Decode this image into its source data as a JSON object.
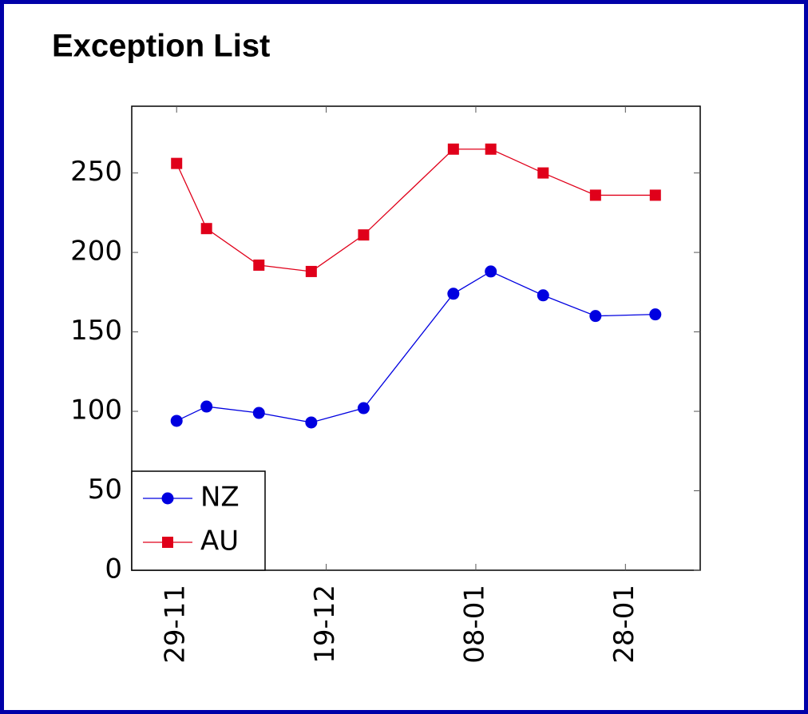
{
  "chart_data": {
    "type": "line",
    "title": "Exception List",
    "x": [
      "29-11",
      "03-12",
      "10-12",
      "17-12",
      "24-12",
      "05-01",
      "10-01",
      "17-01",
      "24-01",
      "01-02"
    ],
    "series": [
      {
        "name": "NZ",
        "color": "#0000e0",
        "marker": "circle",
        "values": [
          94,
          103,
          99,
          93,
          102,
          174,
          188,
          173,
          160,
          161
        ]
      },
      {
        "name": "AU",
        "color": "#e0001a",
        "marker": "square",
        "values": [
          256,
          215,
          192,
          188,
          211,
          265,
          265,
          250,
          236,
          236
        ]
      }
    ],
    "xlim": [
      "23-11",
      "07-02"
    ],
    "xticks": [
      "29-11",
      "19-12",
      "08-01",
      "28-01"
    ],
    "ylim": [
      0,
      292
    ],
    "yticks": [
      0,
      50,
      100,
      150,
      200,
      250
    ],
    "legend": "lower left"
  }
}
